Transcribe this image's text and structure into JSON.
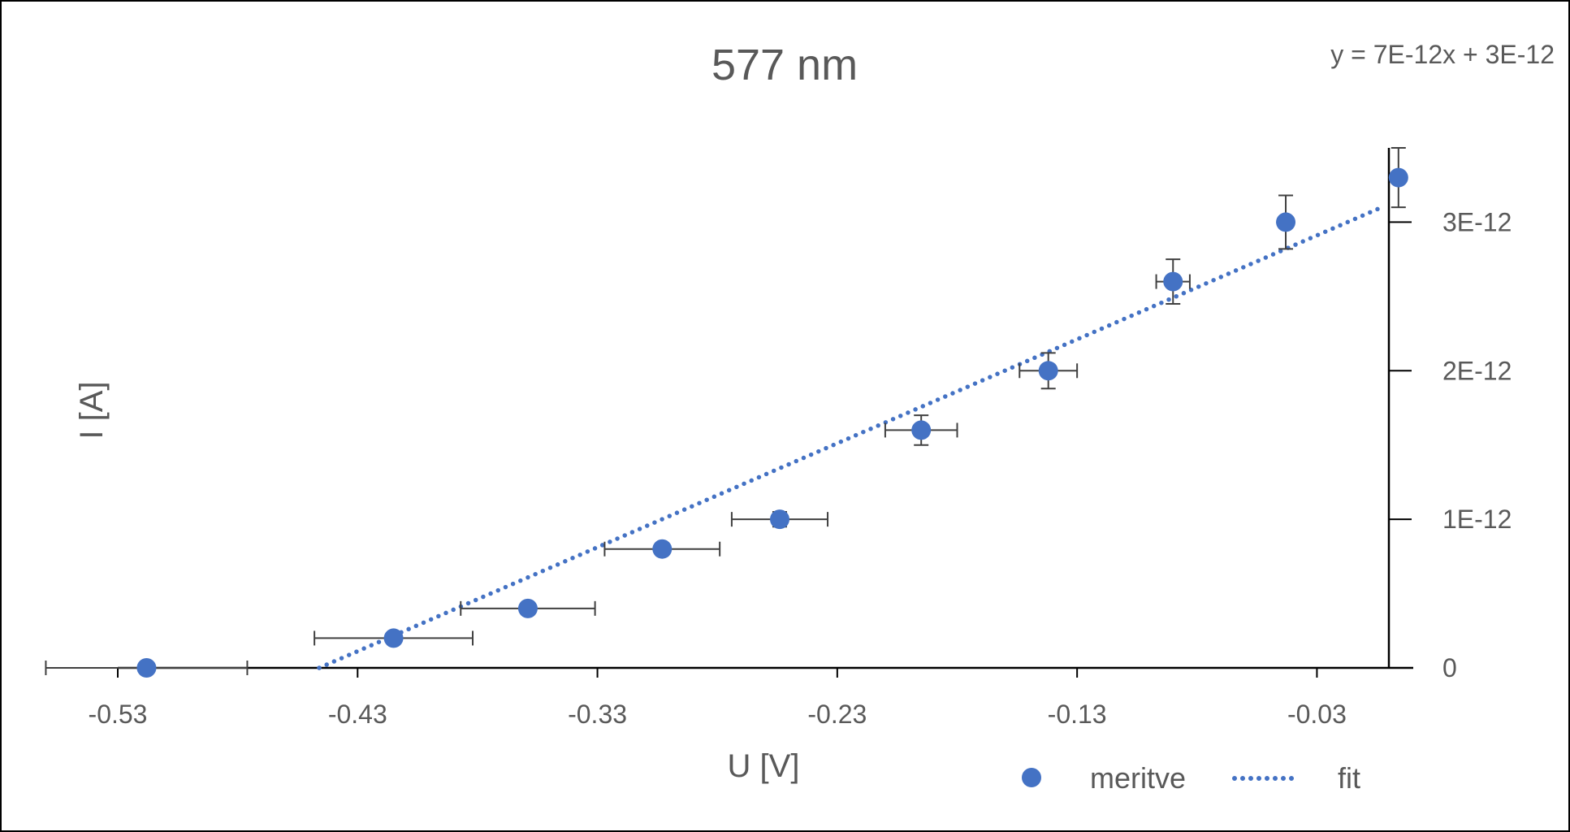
{
  "chart_data": {
    "type": "scatter",
    "title": "577 nm",
    "xlabel": "U [V]",
    "ylabel": "I [A]",
    "xlim": [
      -0.53,
      0.0
    ],
    "ylim": [
      0,
      3.5e-12
    ],
    "x_ticks": [
      -0.53,
      -0.43,
      -0.33,
      -0.23,
      -0.13,
      -0.03
    ],
    "x_tick_labels": [
      "-0.53",
      "-0.43",
      "-0.33",
      "-0.23",
      "-0.13",
      "-0.03"
    ],
    "y_ticks": [
      0,
      1e-12,
      2e-12,
      3e-12
    ],
    "y_tick_labels": [
      "0",
      "1E-12",
      "2E-12",
      "3E-12"
    ],
    "y_axis_position": "right",
    "grid": false,
    "legend": {
      "position": "bottom-right",
      "entries": [
        "meritve",
        "fit"
      ]
    },
    "series": [
      {
        "name": "meritve",
        "kind": "scatter",
        "color": "#4472C4",
        "points": [
          {
            "x": -0.518,
            "y": 0,
            "xerr": 0.042,
            "yerr": 0
          },
          {
            "x": -0.415,
            "y": 2e-13,
            "xerr": 0.033,
            "yerr": 0
          },
          {
            "x": -0.359,
            "y": 4e-13,
            "xerr": 0.028,
            "yerr": 0
          },
          {
            "x": -0.303,
            "y": 8e-13,
            "xerr": 0.024,
            "yerr": 0
          },
          {
            "x": -0.254,
            "y": 1e-12,
            "xerr": 0.02,
            "yerr": 5e-14
          },
          {
            "x": -0.195,
            "y": 1.6e-12,
            "xerr": 0.015,
            "yerr": 1e-13
          },
          {
            "x": -0.142,
            "y": 2e-12,
            "xerr": 0.012,
            "yerr": 1.2e-13
          },
          {
            "x": -0.09,
            "y": 2.6e-12,
            "xerr": 0.007,
            "yerr": 1.5e-13
          },
          {
            "x": -0.043,
            "y": 3e-12,
            "xerr": 0.0,
            "yerr": 1.8e-13
          },
          {
            "x": 0.004,
            "y": 3.3e-12,
            "xerr": 0.0,
            "yerr": 2e-13
          }
        ]
      },
      {
        "name": "fit",
        "kind": "line",
        "style": "dotted",
        "color": "#4472C4",
        "x": [
          -0.446,
          -0.003
        ],
        "y": [
          0,
          3.1e-12
        ]
      }
    ],
    "annotations": [
      {
        "text": "y = 7E-12x + 3E-12",
        "position": "top-right"
      }
    ]
  }
}
